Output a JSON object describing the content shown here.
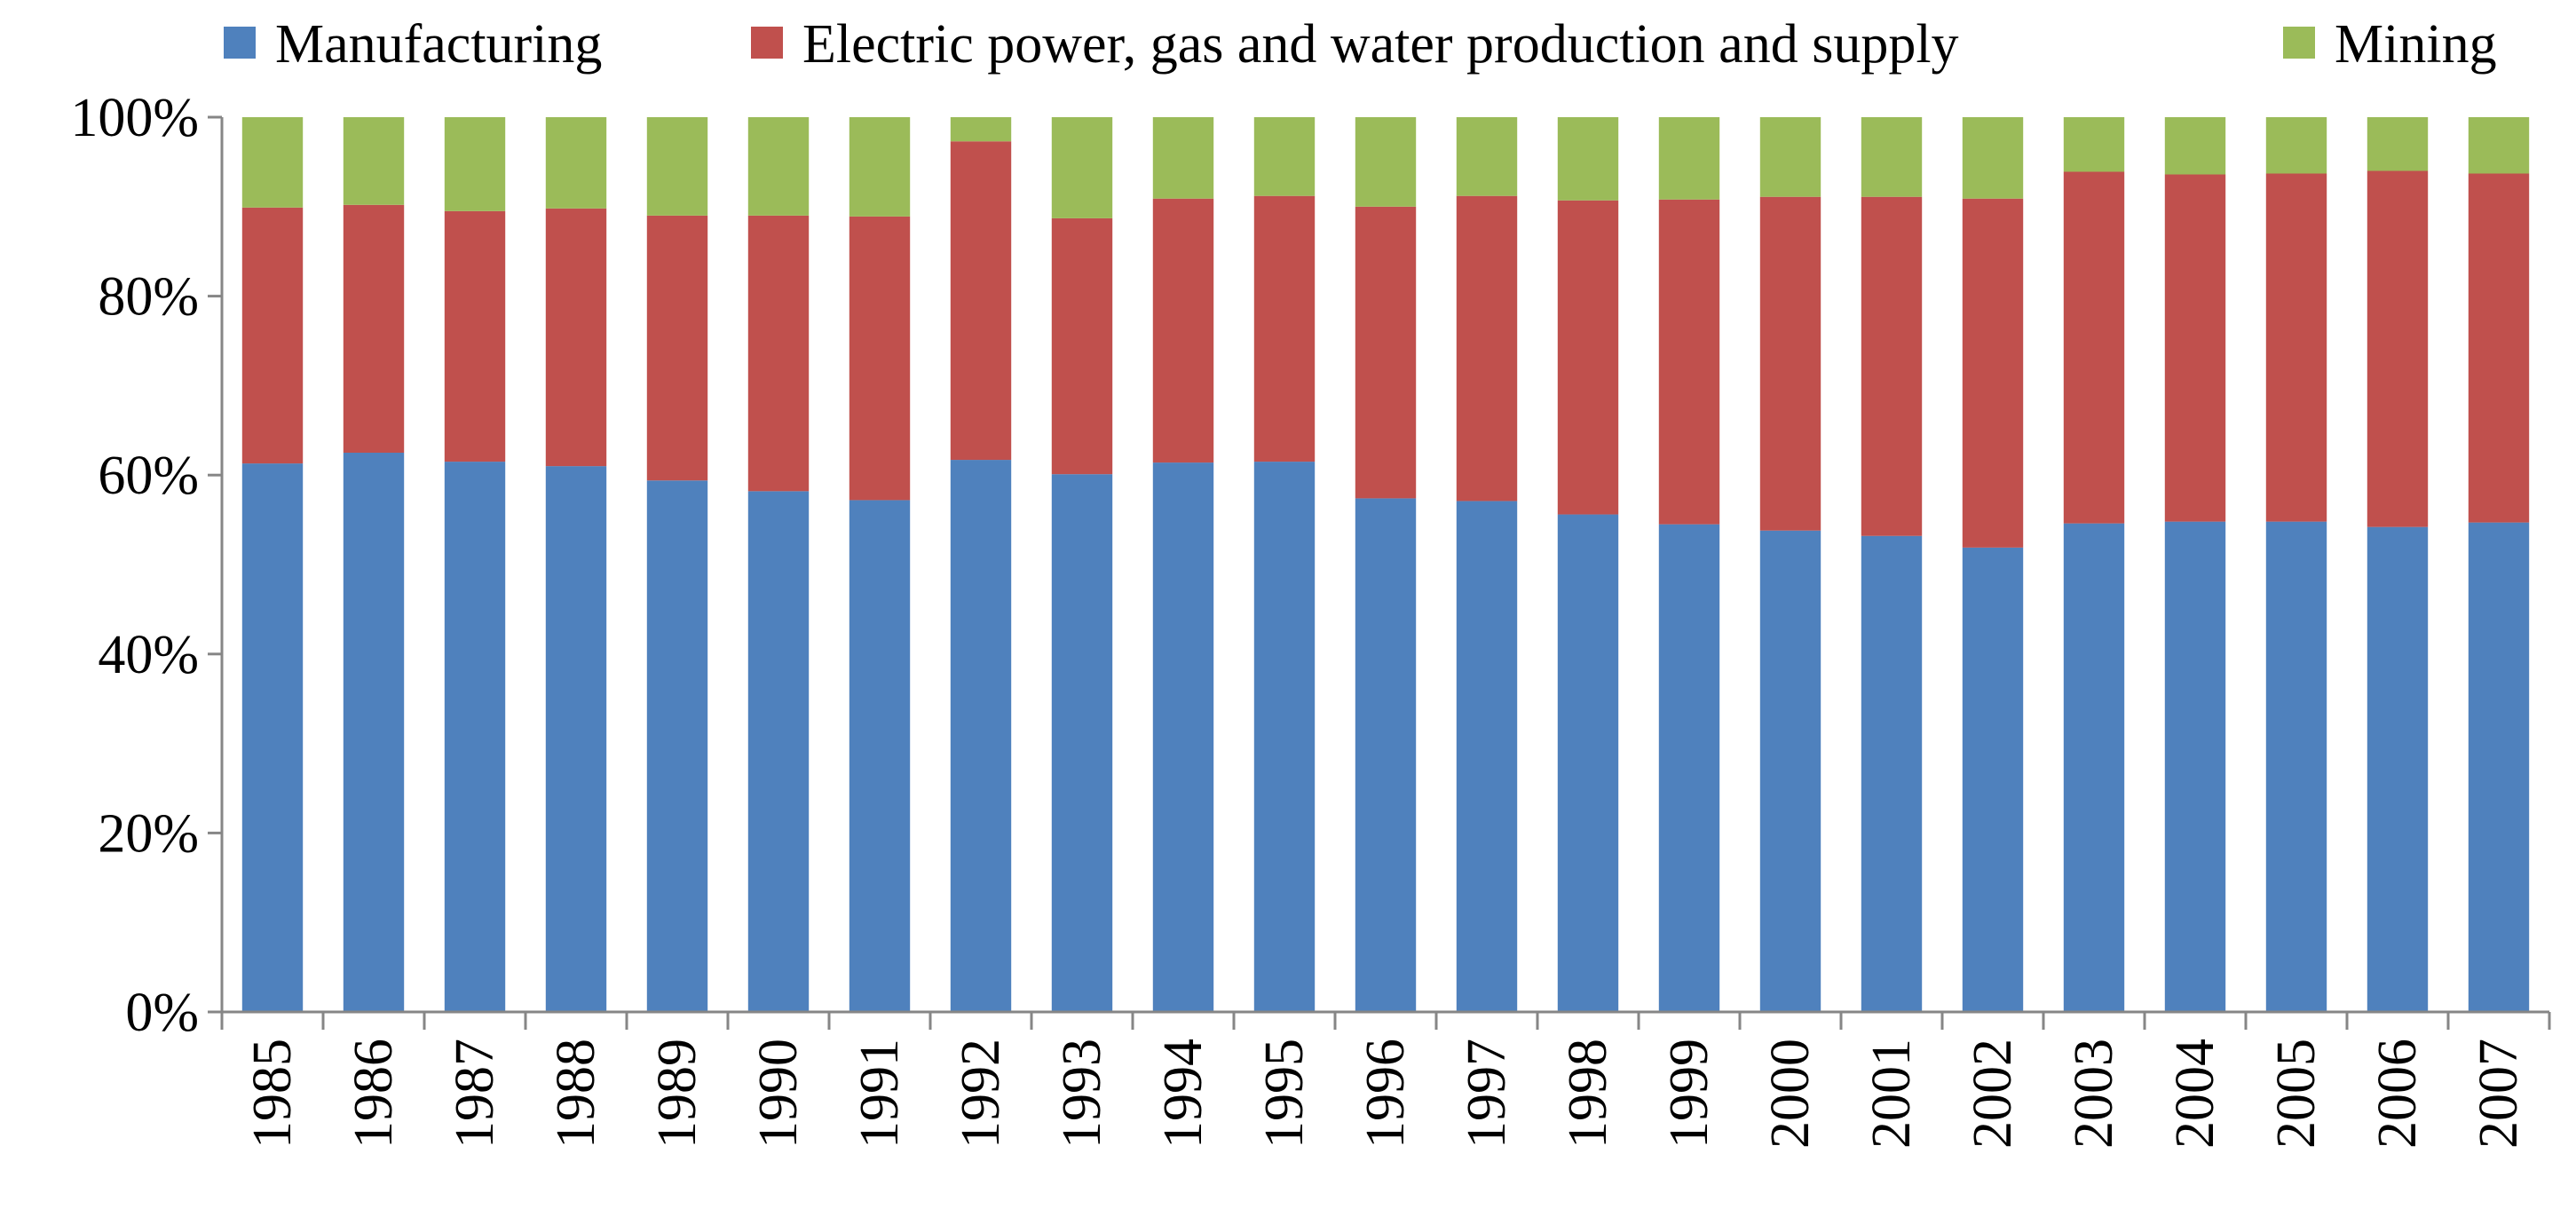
{
  "chart_data": {
    "type": "bar",
    "stacked": true,
    "percent": true,
    "title": "",
    "xlabel": "",
    "ylabel": "",
    "ylim": [
      0,
      100
    ],
    "yticks": [
      "0%",
      "20%",
      "40%",
      "60%",
      "80%",
      "100%"
    ],
    "grid": false,
    "legend_position": "top",
    "categories": [
      "1985",
      "1986",
      "1987",
      "1988",
      "1989",
      "1990",
      "1991",
      "1992",
      "1993",
      "1994",
      "1995",
      "1996",
      "1997",
      "1998",
      "1999",
      "2000",
      "2001",
      "2002",
      "2003",
      "2004",
      "2005",
      "2006",
      "2007"
    ],
    "series": [
      {
        "name": "Manufacturing",
        "color": "#4F81BD",
        "values": [
          61.3,
          62.5,
          61.5,
          61.0,
          59.4,
          58.2,
          57.2,
          61.7,
          60.1,
          61.4,
          61.5,
          57.4,
          57.1,
          55.6,
          54.5,
          53.8,
          53.2,
          51.9,
          54.6,
          54.8,
          54.8,
          54.2,
          54.7
        ]
      },
      {
        "name": "Electric power, gas and water production and supply",
        "color": "#C0504D",
        "values": [
          28.6,
          27.7,
          28.0,
          28.8,
          29.6,
          30.8,
          31.7,
          35.6,
          28.6,
          29.5,
          29.7,
          32.6,
          34.1,
          35.1,
          36.3,
          37.3,
          37.9,
          39.0,
          39.3,
          38.8,
          38.9,
          39.8,
          39.0
        ]
      },
      {
        "name": "Mining",
        "color": "#9BBB59",
        "values": [
          10.1,
          9.8,
          10.5,
          10.2,
          11.0,
          11.0,
          11.1,
          2.7,
          11.3,
          9.1,
          8.8,
          10.0,
          8.8,
          9.3,
          9.2,
          8.9,
          8.9,
          9.1,
          6.1,
          6.4,
          6.3,
          6.0,
          6.3
        ]
      }
    ]
  }
}
